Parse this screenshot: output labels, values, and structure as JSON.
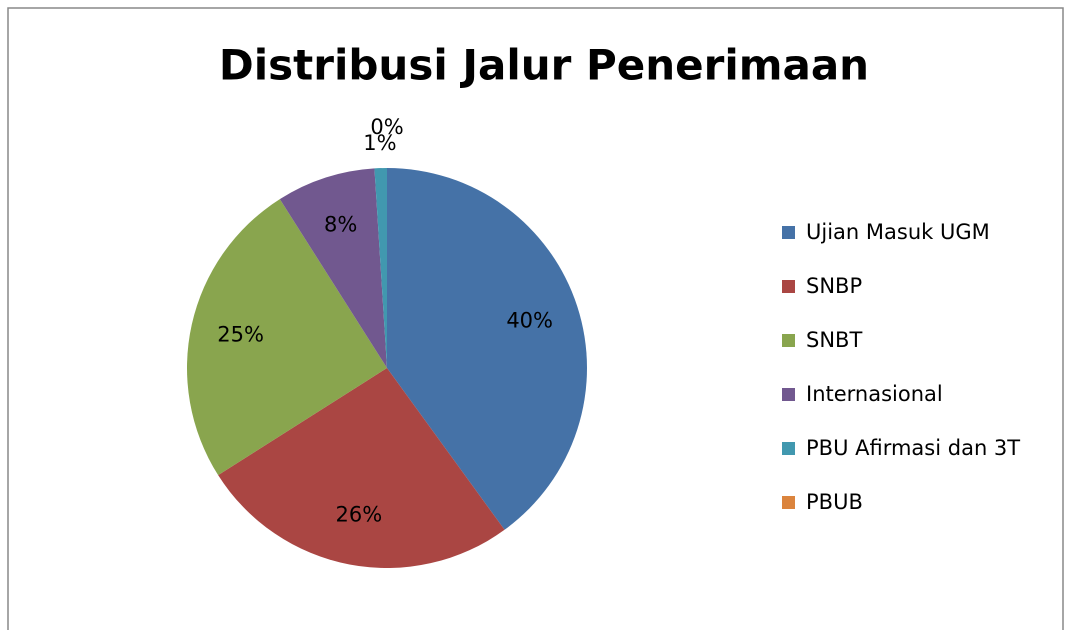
{
  "chart_data": {
    "type": "pie",
    "title": "Distribusi Jalur Penerimaan",
    "categories": [
      "Ujian Masuk UGM",
      "SNBP",
      "SNBT",
      "Internasional",
      "PBU Afirmasi dan 3T",
      "PBUB"
    ],
    "values": [
      40,
      26,
      25,
      8,
      1,
      0
    ],
    "value_labels": [
      "40%",
      "26%",
      "25%",
      "8%",
      "1%",
      "0%"
    ],
    "colors": [
      "#4572a7",
      "#aa4643",
      "#89a54e",
      "#71588f",
      "#4198af",
      "#db843d"
    ],
    "legend": "right"
  }
}
